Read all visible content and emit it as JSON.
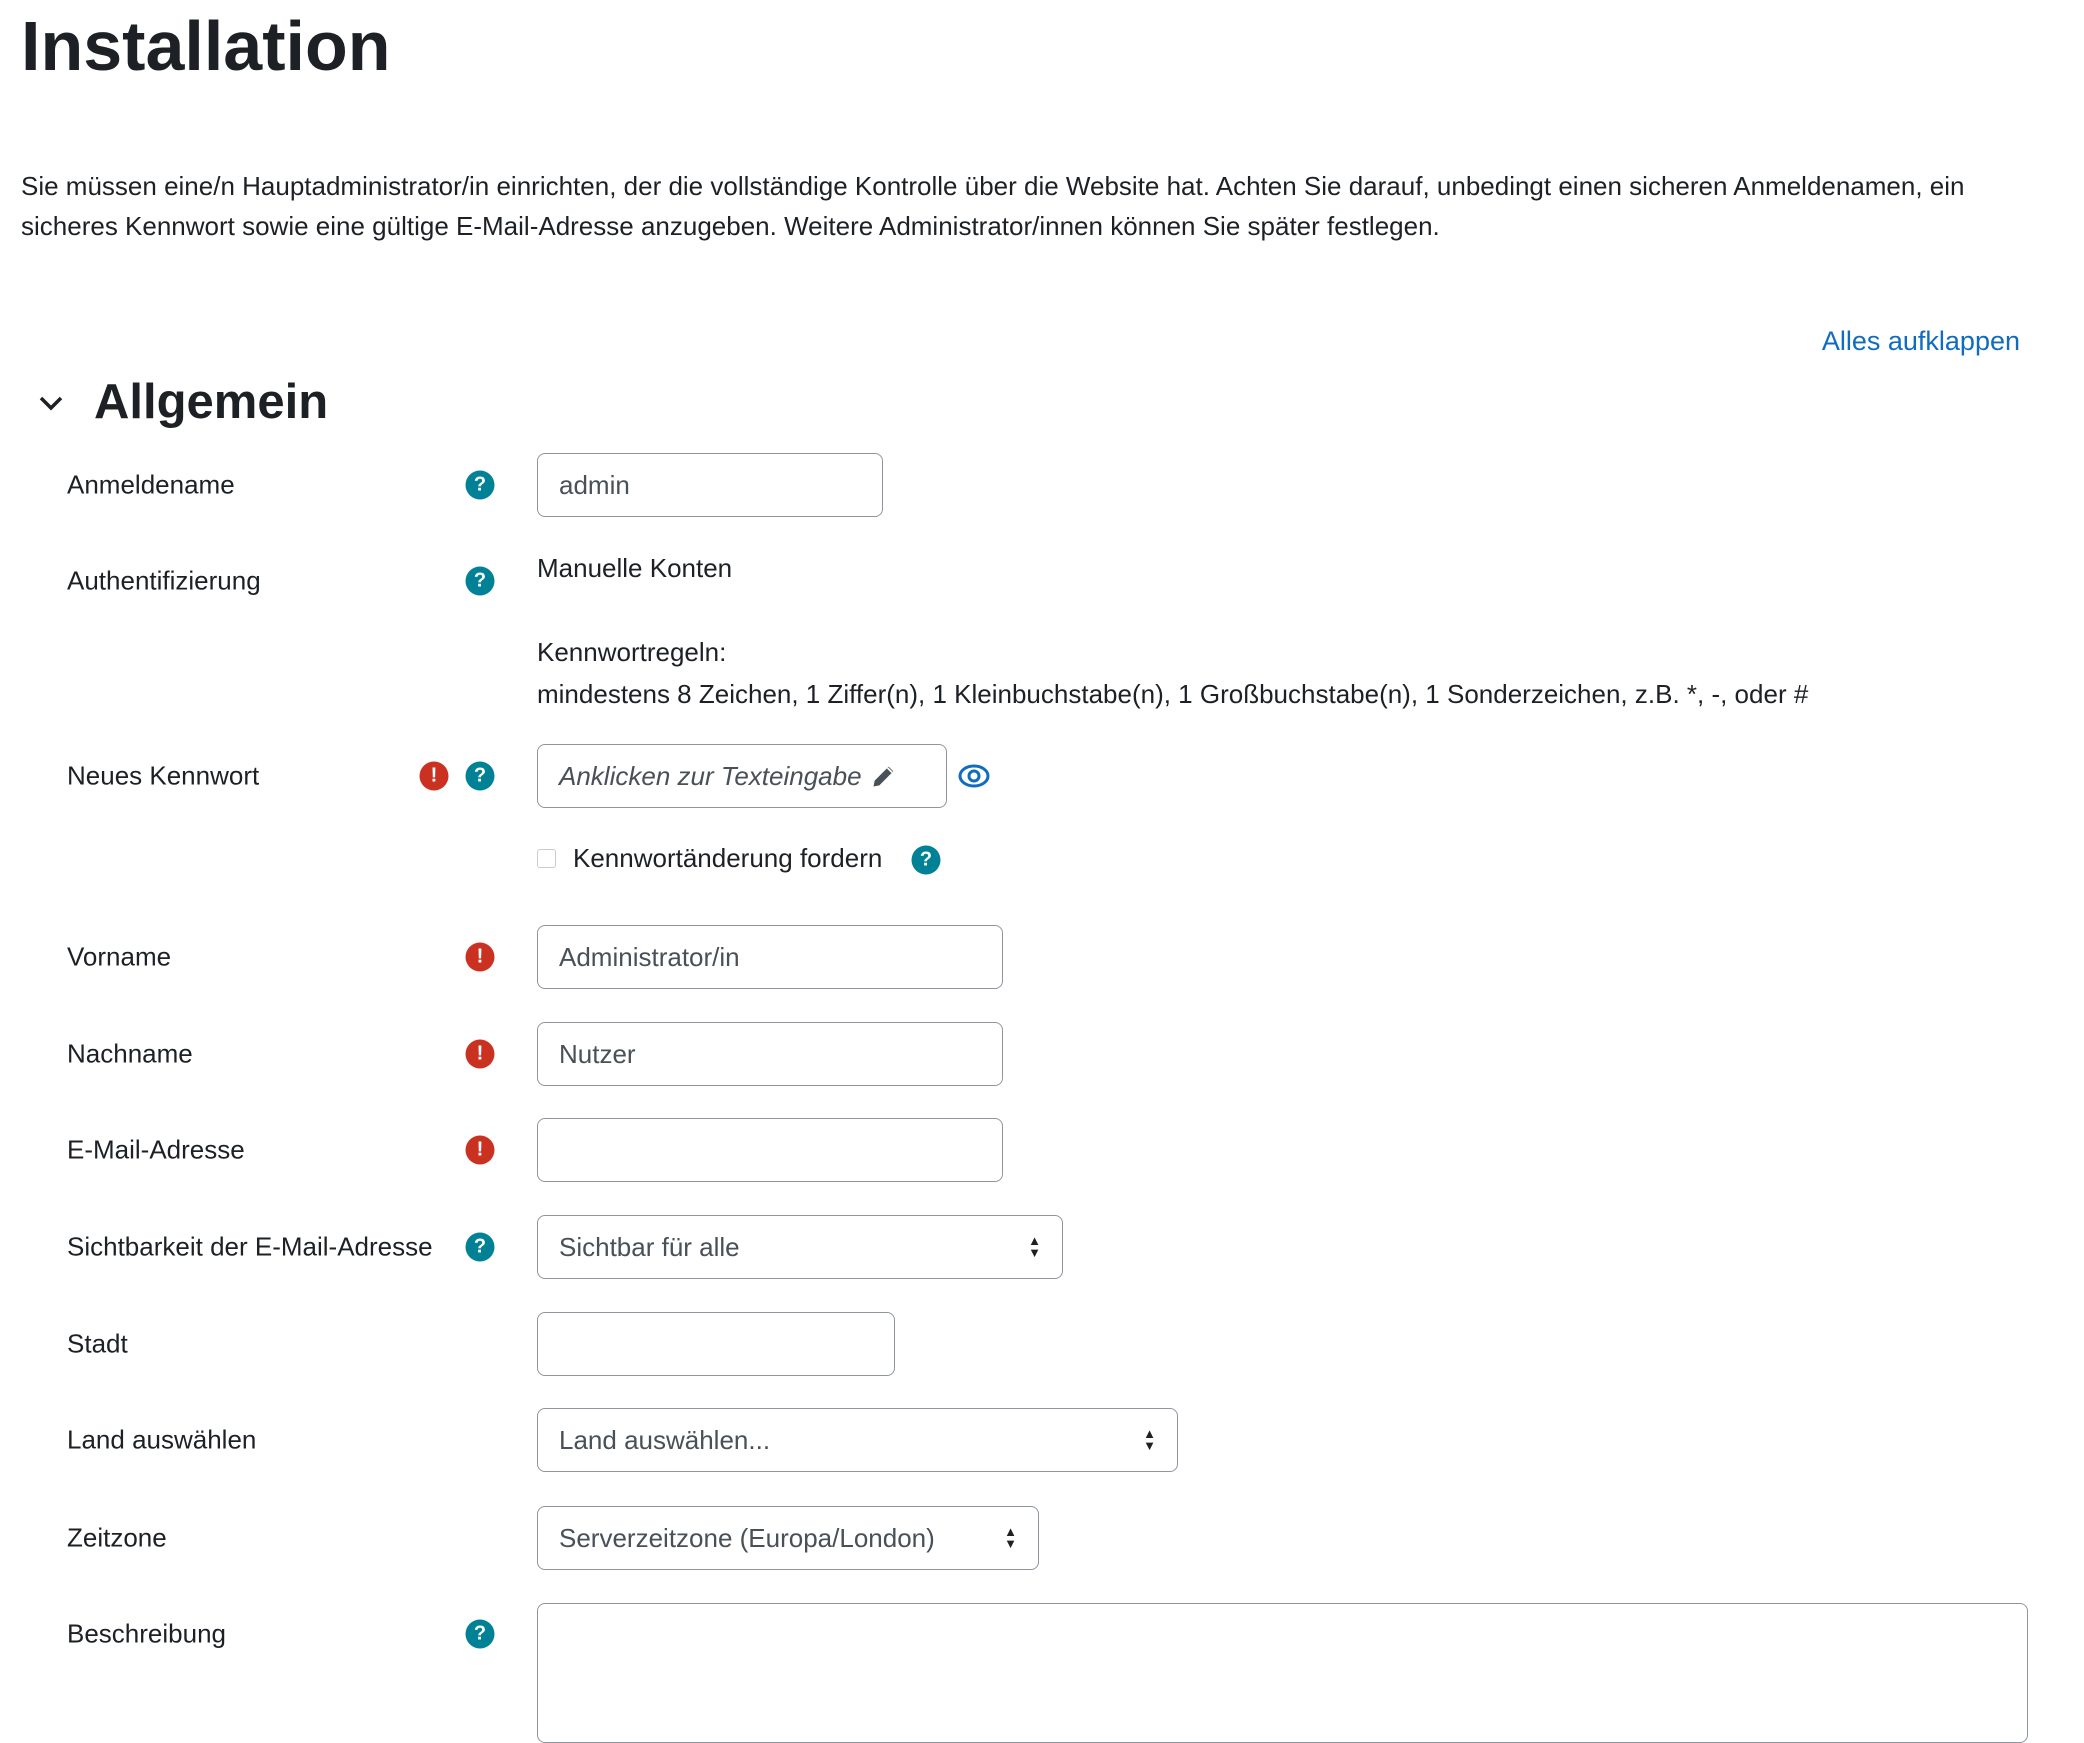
{
  "page": {
    "title": "Installation",
    "intro": "Sie müssen eine/n Hauptadministrator/in einrichten, der die vollständige Kontrolle über die Website hat. Achten Sie darauf, unbedingt einen sicheren Anmeldenamen, ein sicheres Kennwort sowie eine gültige E-Mail-Adresse anzugeben. Weitere Administrator/innen können Sie später festlegen.",
    "expand_all": "Alles aufklappen"
  },
  "section": {
    "title": "Allgemein",
    "icon": "chevron-down-icon"
  },
  "colors": {
    "help": "#008196",
    "error": "#ca3120",
    "link": "#0f6cbf"
  },
  "form": {
    "username": {
      "label": "Anmeldename",
      "value": "admin"
    },
    "auth": {
      "label": "Authentifizierung",
      "value": "Manuelle Konten",
      "rules_title": "Kennwortregeln:",
      "rules": "mindestens 8 Zeichen, 1 Ziffer(n), 1 Kleinbuchstabe(n), 1 Großbuchstabe(n), 1 Sonderzeichen, z.B. *, -, oder #"
    },
    "password": {
      "label": "Neues Kennwort",
      "placeholder": "Anklicken zur Texteingabe"
    },
    "force_change": {
      "label": "Kennwortänderung fordern",
      "checked": false
    },
    "firstname": {
      "label": "Vorname",
      "value": "Administrator/in"
    },
    "lastname": {
      "label": "Nachname",
      "value": "Nutzer"
    },
    "email": {
      "label": "E-Mail-Adresse",
      "value": ""
    },
    "email_visibility": {
      "label": "Sichtbarkeit der E-Mail-Adresse",
      "value": "Sichtbar für alle"
    },
    "city": {
      "label": "Stadt",
      "value": ""
    },
    "country": {
      "label": "Land auswählen",
      "value": "Land auswählen..."
    },
    "timezone": {
      "label": "Zeitzone",
      "value": "Serverzeitzone (Europa/London)"
    },
    "description": {
      "label": "Beschreibung",
      "value": ""
    }
  },
  "icons": {
    "help": "?",
    "error": "!"
  }
}
